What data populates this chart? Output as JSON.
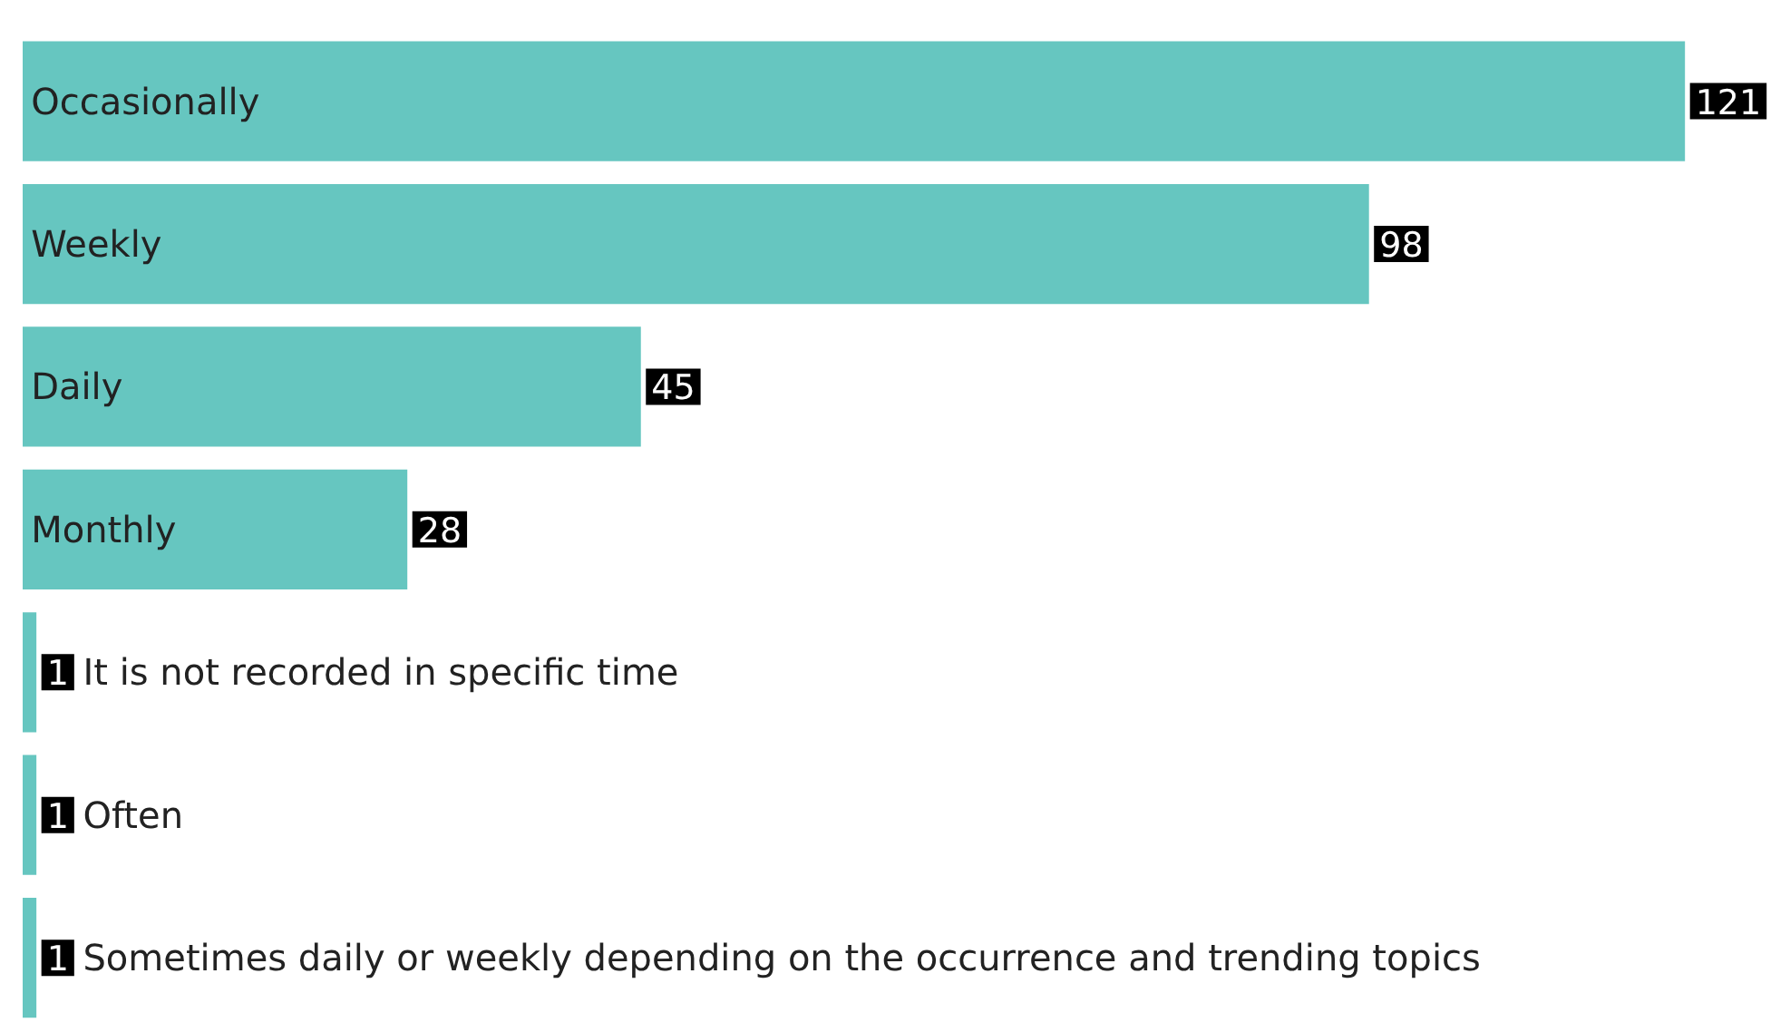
{
  "chart_data": {
    "type": "bar",
    "orientation": "horizontal",
    "categories": [
      "Occasionally",
      "Weekly",
      "Daily",
      "Monthly",
      "It is not recorded in specific time",
      "Often",
      "Sometimes daily or weekly depending on the occurrence and trending topics"
    ],
    "values": [
      121,
      98,
      45,
      28,
      1,
      1,
      1
    ],
    "color": "#66c6c0",
    "data_labels": true,
    "grid": false
  }
}
